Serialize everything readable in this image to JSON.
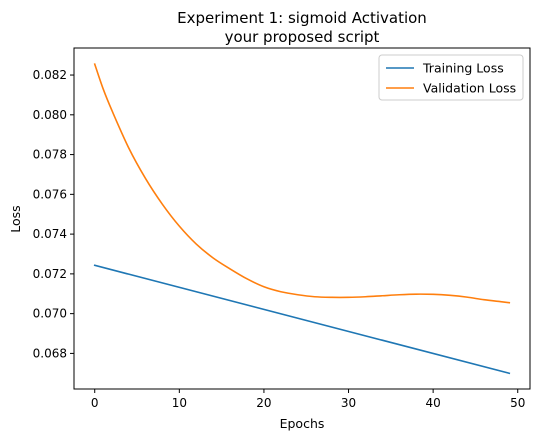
{
  "chart_data": {
    "type": "line",
    "title_line1": "Experiment 1: sigmoid Activation",
    "title_line2": "your proposed script",
    "xlabel": "Epochs",
    "ylabel": "Loss",
    "xlim": [
      -2.45,
      51.45
    ],
    "ylim": [
      0.06621,
      0.08336
    ],
    "xticks": [
      0,
      10,
      20,
      30,
      40,
      50
    ],
    "yticks": [
      0.068,
      0.07,
      0.072,
      0.074,
      0.076,
      0.078,
      0.08,
      0.082
    ],
    "grid": false,
    "legend_position": "top-right",
    "series": [
      {
        "name": "Training Loss",
        "color": "#1f77b4",
        "x": [
          0,
          49
        ],
        "y": [
          0.07243,
          0.067
        ]
      },
      {
        "name": "Validation Loss",
        "color": "#ff7f0e",
        "x": [
          0,
          1,
          2,
          4,
          6,
          8,
          10,
          12,
          14,
          16,
          18,
          20,
          22,
          24,
          26,
          28,
          30,
          32,
          34,
          36,
          38,
          40,
          42,
          44,
          46,
          48,
          49
        ],
        "y": [
          0.08255,
          0.0813,
          0.08025,
          0.07835,
          0.0768,
          0.0755,
          0.0744,
          0.0735,
          0.0728,
          0.07225,
          0.07175,
          0.07135,
          0.0711,
          0.07095,
          0.07085,
          0.07082,
          0.07082,
          0.07085,
          0.0709,
          0.07095,
          0.07098,
          0.07097,
          0.07092,
          0.07083,
          0.0707,
          0.0706,
          0.07055
        ]
      }
    ]
  }
}
